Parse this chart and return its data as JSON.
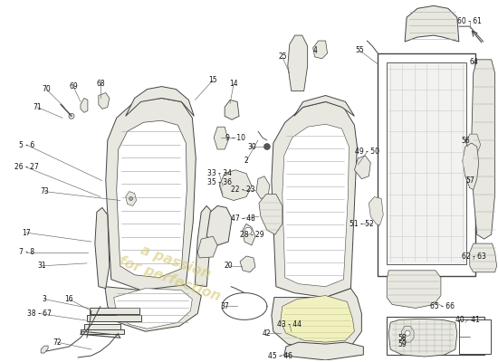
{
  "background_color": "#ffffff",
  "line_color": "#444444",
  "lw": 0.7,
  "watermark_text": "a passion\nfor perfection",
  "watermark_color": "#d4c870",
  "label_fontsize": 5.5,
  "label_color": "#111111"
}
